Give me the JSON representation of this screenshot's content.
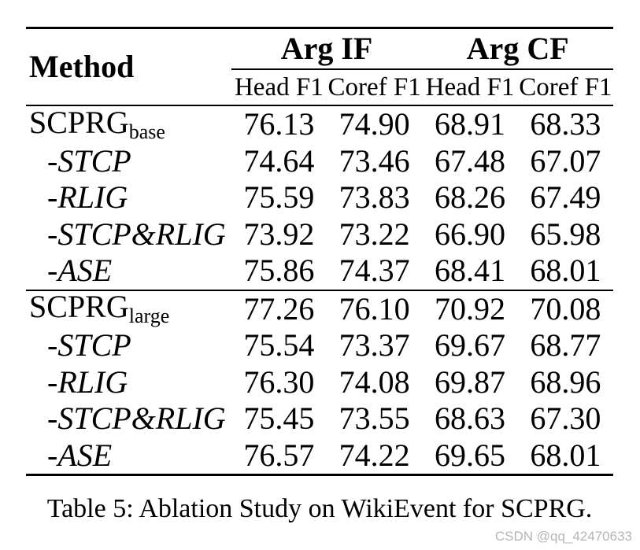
{
  "table": {
    "header": {
      "method_label": "Method",
      "groups": [
        {
          "label": "Arg IF"
        },
        {
          "label": "Arg CF"
        }
      ],
      "subheaders": [
        "Head F1",
        "Coref F1",
        "Head F1",
        "Coref F1"
      ]
    },
    "rows": [
      {
        "method": "SCPRG",
        "subscript": "base",
        "values": [
          "76.13",
          "74.90",
          "68.91",
          "68.33"
        ]
      },
      {
        "method": "-STCP",
        "values": [
          "74.64",
          "73.46",
          "67.48",
          "67.07"
        ]
      },
      {
        "method": "-RLIG",
        "values": [
          "75.59",
          "73.83",
          "68.26",
          "67.49"
        ]
      },
      {
        "method": "-STCP&RLIG",
        "values": [
          "73.92",
          "73.22",
          "66.90",
          "65.98"
        ]
      },
      {
        "method": "-ASE",
        "values": [
          "75.86",
          "74.37",
          "68.41",
          "68.01"
        ]
      },
      {
        "method": "SCPRG",
        "subscript": "large",
        "values": [
          "77.26",
          "76.10",
          "70.92",
          "70.08"
        ]
      },
      {
        "method": "-STCP",
        "values": [
          "75.54",
          "73.37",
          "69.67",
          "68.77"
        ]
      },
      {
        "method": "-RLIG",
        "values": [
          "76.30",
          "74.08",
          "69.87",
          "68.96"
        ]
      },
      {
        "method": "-STCP&RLIG",
        "values": [
          "75.45",
          "73.55",
          "68.63",
          "67.30"
        ]
      },
      {
        "method": "-ASE",
        "values": [
          "76.57",
          "74.22",
          "69.65",
          "68.01"
        ]
      }
    ]
  },
  "caption": "Table 5: Ablation Study on WikiEvent for SCPRG.",
  "watermark": "CSDN @qq_42470633",
  "colors": {
    "text": "#000000",
    "background": "#ffffff",
    "watermark": "#b3b6b8"
  }
}
